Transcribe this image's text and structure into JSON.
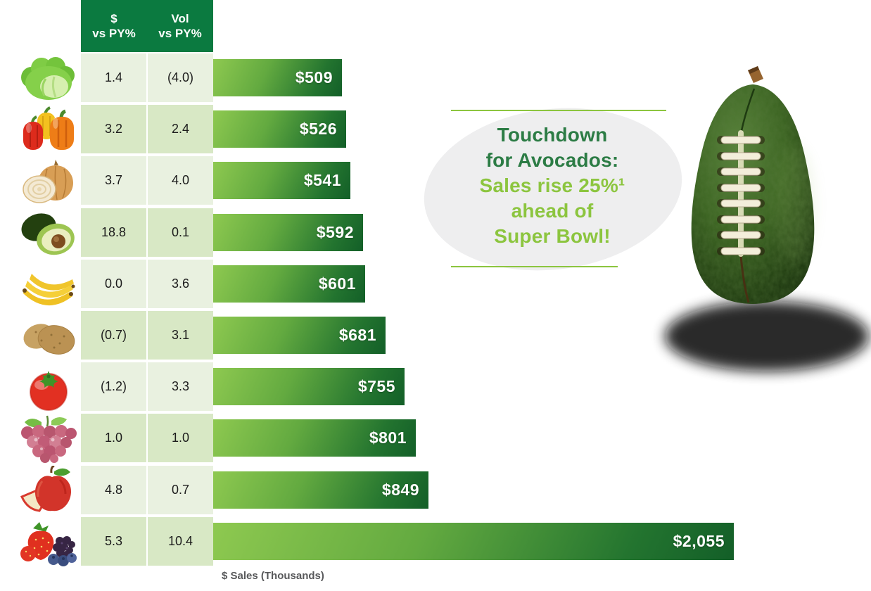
{
  "table": {
    "columns": [
      {
        "line1": "$",
        "line2": "vs PY%"
      },
      {
        "line1": "Vol",
        "line2": "vs PY%"
      }
    ]
  },
  "rows": [
    {
      "icon": "lettuce-icon",
      "dollar_display": "1.4",
      "vol_display": "(4.0)",
      "sales_display": "$509",
      "sales_value": 509
    },
    {
      "icon": "bell-peppers-icon",
      "dollar_display": "3.2",
      "vol_display": "2.4",
      "sales_display": "$526",
      "sales_value": 526
    },
    {
      "icon": "onion-icon",
      "dollar_display": "3.7",
      "vol_display": "4.0",
      "sales_display": "$541",
      "sales_value": 541
    },
    {
      "icon": "avocado-icon",
      "dollar_display": "18.8",
      "vol_display": "0.1",
      "sales_display": "$592",
      "sales_value": 592
    },
    {
      "icon": "bananas-icon",
      "dollar_display": "0.0",
      "vol_display": "3.6",
      "sales_display": "$601",
      "sales_value": 601
    },
    {
      "icon": "potatoes-icon",
      "dollar_display": "(0.7)",
      "vol_display": "3.1",
      "sales_display": "$681",
      "sales_value": 681
    },
    {
      "icon": "tomato-icon",
      "dollar_display": "(1.2)",
      "vol_display": "3.3",
      "sales_display": "$755",
      "sales_value": 755
    },
    {
      "icon": "grapes-icon",
      "dollar_display": "1.0",
      "vol_display": "1.0",
      "sales_display": "$801",
      "sales_value": 801
    },
    {
      "icon": "apple-icon",
      "dollar_display": "4.8",
      "vol_display": "0.7",
      "sales_display": "$849",
      "sales_value": 849
    },
    {
      "icon": "berries-icon",
      "dollar_display": "5.3",
      "vol_display": "10.4",
      "sales_display": "$2,055",
      "sales_value": 2055
    }
  ],
  "axis": {
    "label": "$ Sales (Thousands)"
  },
  "callout": {
    "line1": "Touchdown",
    "line2": "for Avocados:",
    "line3": "Sales rise 25%¹",
    "line4": "ahead of",
    "line5": "Super Bowl!"
  },
  "colors": {
    "header_green": "#0b7a40",
    "row_light": "#e9f1e0",
    "row_dark": "#d8e8c5",
    "bar_gradient_light": "#8ec950",
    "bar_gradient_dark": "#135f28",
    "callout_dark_green": "#2c7c45",
    "callout_light_green": "#8cc53f",
    "callout_ellipse_gray": "#eeeeef",
    "axis_label_gray": "#58595b"
  },
  "chart_data": {
    "type": "bar",
    "orientation": "horizontal",
    "categories": [
      "Lettuce",
      "Bell Peppers",
      "Onions",
      "Avocados",
      "Bananas",
      "Potatoes",
      "Tomatoes",
      "Grapes",
      "Apples",
      "Berries"
    ],
    "series": [
      {
        "name": "$ Sales (Thousands)",
        "values": [
          509,
          526,
          541,
          592,
          601,
          681,
          755,
          801,
          849,
          2055
        ]
      },
      {
        "name": "$ vs PY%",
        "values": [
          1.4,
          3.2,
          3.7,
          18.8,
          0.0,
          -0.7,
          -1.2,
          1.0,
          4.8,
          5.3
        ]
      },
      {
        "name": "Vol vs PY%",
        "values": [
          -4.0,
          2.4,
          4.0,
          0.1,
          3.6,
          3.1,
          3.3,
          1.0,
          0.7,
          10.4
        ]
      }
    ],
    "bar_labels": [
      "$509",
      "$526",
      "$541",
      "$592",
      "$601",
      "$681",
      "$755",
      "$801",
      "$849",
      "$2,055"
    ],
    "negative_notation": "parentheses",
    "xlabel": "$ Sales (Thousands)",
    "xlim": [
      0,
      2100
    ],
    "grid": false,
    "legend": false,
    "annotation": "Touchdown for Avocados: Sales rise 25%¹ ahead of Super Bowl!"
  }
}
